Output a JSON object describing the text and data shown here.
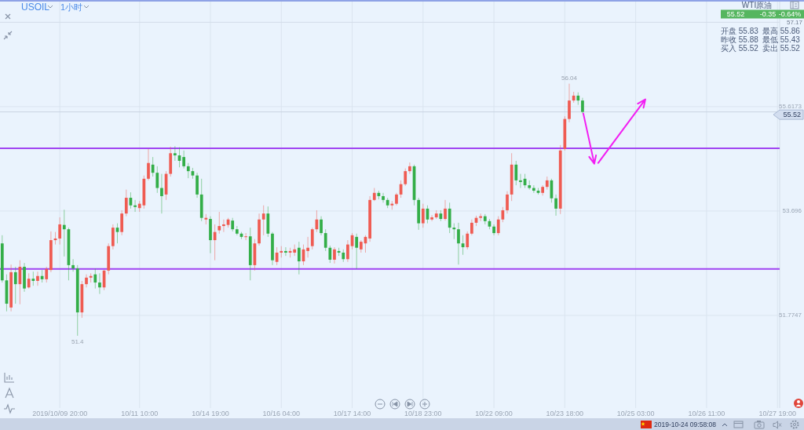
{
  "chart_data": {
    "type": "candlestick",
    "title": "USOIL",
    "subtitle": "1小时",
    "categories": [
      null,
      null,
      null,
      null,
      null,
      null,
      null,
      null,
      null,
      null,
      null,
      null,
      null,
      "2019/10/09 20:00",
      null,
      null,
      null,
      null,
      null,
      null,
      null,
      null,
      null,
      null,
      null,
      null,
      null,
      null,
      null,
      null,
      null,
      "10/11 10:00",
      null,
      null,
      null,
      null,
      null,
      null,
      null,
      null,
      null,
      null,
      null,
      null,
      null,
      null,
      null,
      "10/14 19:00",
      null,
      null,
      null,
      null,
      null,
      null,
      null,
      null,
      null,
      null,
      null,
      null,
      null,
      null,
      null,
      "10/16 04:00",
      null,
      null,
      null,
      null,
      null,
      null,
      null,
      null,
      null,
      null,
      null,
      null,
      null,
      null,
      null,
      "10/17 14:00",
      null,
      null,
      null,
      null,
      null,
      null,
      null,
      null,
      null,
      null,
      null,
      null,
      null,
      null,
      null,
      "10/18 23:00",
      null,
      null,
      null,
      null,
      null,
      null,
      null,
      null,
      null,
      null,
      null,
      null,
      null,
      null,
      null,
      "10/22 09:00",
      null,
      null,
      null,
      null,
      null,
      null,
      null,
      null,
      null,
      null,
      null,
      null,
      null,
      null,
      null,
      "10/23 18:00",
      null,
      null,
      null,
      null,
      null,
      null,
      null,
      null,
      null,
      null,
      null,
      null,
      null,
      null,
      null,
      "10/25 03:00",
      null,
      null,
      null,
      null,
      null,
      null,
      null,
      null,
      null,
      null,
      null,
      null,
      null,
      null,
      null,
      "10/26 11:00",
      null,
      null,
      null,
      null,
      null,
      null,
      null,
      null,
      null,
      null,
      null,
      null,
      null,
      null,
      null,
      "10/27 19:00"
    ],
    "ohlc": [
      [
        53.1,
        53.25,
        52.38,
        52.42
      ],
      [
        52.42,
        52.53,
        51.85,
        51.99
      ],
      [
        51.92,
        52.71,
        51.85,
        52.57
      ],
      [
        52.57,
        52.67,
        51.99,
        52.35
      ],
      [
        52.35,
        52.79,
        51.98,
        52.67
      ],
      [
        52.67,
        52.74,
        52.21,
        52.27
      ],
      [
        52.29,
        52.55,
        52.27,
        52.45
      ],
      [
        52.45,
        52.58,
        52.32,
        52.41
      ],
      [
        52.41,
        52.58,
        52.32,
        52.5
      ],
      [
        52.5,
        52.61,
        52.38,
        52.44
      ],
      [
        52.44,
        52.67,
        52.38,
        52.63
      ],
      [
        52.61,
        53.32,
        52.57,
        53.16
      ],
      [
        53.16,
        53.31,
        53.08,
        53.19
      ],
      [
        53.19,
        53.58,
        53.08,
        53.45
      ],
      [
        53.44,
        53.72,
        52.86,
        53.36
      ],
      [
        53.36,
        53.39,
        52.42,
        52.7
      ],
      [
        52.7,
        52.81,
        52.58,
        52.64
      ],
      [
        52.64,
        52.7,
        51.4,
        51.83
      ],
      [
        51.83,
        52.41,
        51.73,
        52.35
      ],
      [
        52.35,
        52.53,
        52.29,
        52.47
      ],
      [
        52.47,
        52.55,
        52.38,
        52.5
      ],
      [
        52.53,
        52.64,
        52.27,
        52.38
      ],
      [
        52.38,
        52.55,
        52.17,
        52.29
      ],
      [
        52.29,
        52.61,
        52.24,
        52.6
      ],
      [
        52.6,
        53.1,
        52.53,
        53.05
      ],
      [
        53.05,
        53.45,
        52.99,
        53.39
      ],
      [
        53.39,
        53.47,
        53.1,
        53.31
      ],
      [
        53.31,
        53.71,
        53.25,
        53.65
      ],
      [
        53.65,
        54.09,
        53.6,
        53.94
      ],
      [
        53.94,
        54.04,
        53.74,
        53.8
      ],
      [
        53.8,
        53.9,
        53.68,
        53.77
      ],
      [
        53.75,
        53.88,
        53.68,
        53.83
      ],
      [
        53.8,
        54.35,
        53.74,
        54.29
      ],
      [
        54.29,
        54.84,
        54.26,
        54.58
      ],
      [
        54.55,
        54.69,
        54.33,
        54.4
      ],
      [
        54.4,
        54.52,
        54.03,
        54.12
      ],
      [
        54.12,
        54.38,
        53.65,
        53.97
      ],
      [
        54.0,
        54.43,
        53.9,
        54.38
      ],
      [
        54.38,
        54.88,
        54.33,
        54.76
      ],
      [
        54.76,
        54.89,
        54.62,
        54.72
      ],
      [
        54.72,
        54.87,
        54.5,
        54.62
      ],
      [
        54.69,
        54.81,
        54.48,
        54.52
      ],
      [
        54.52,
        54.58,
        54.3,
        54.43
      ],
      [
        54.43,
        54.49,
        54.29,
        54.35
      ],
      [
        54.35,
        54.4,
        53.94,
        54.0
      ],
      [
        54.0,
        54.29,
        53.51,
        53.57
      ],
      [
        53.54,
        53.64,
        53.45,
        53.57
      ],
      [
        53.55,
        53.6,
        52.92,
        53.16
      ],
      [
        53.16,
        53.45,
        52.79,
        53.31
      ],
      [
        53.34,
        53.68,
        53.28,
        53.42
      ],
      [
        53.42,
        53.54,
        53.31,
        53.45
      ],
      [
        53.44,
        53.57,
        53.39,
        53.54
      ],
      [
        53.52,
        53.57,
        53.32,
        53.36
      ],
      [
        53.36,
        53.42,
        53.25,
        53.28
      ],
      [
        53.28,
        53.31,
        53.18,
        53.22
      ],
      [
        53.22,
        53.29,
        53.16,
        53.23
      ],
      [
        53.23,
        53.39,
        52.42,
        52.7
      ],
      [
        52.7,
        53.18,
        52.6,
        53.1
      ],
      [
        53.1,
        53.65,
        53.06,
        53.54
      ],
      [
        53.54,
        53.8,
        53.25,
        53.65
      ],
      [
        53.65,
        53.78,
        53.22,
        53.28
      ],
      [
        53.28,
        53.31,
        52.7,
        52.79
      ],
      [
        52.76,
        53.03,
        52.7,
        52.93
      ],
      [
        52.93,
        53.05,
        52.84,
        52.96
      ],
      [
        52.96,
        53.03,
        52.87,
        52.93
      ],
      [
        52.93,
        53.02,
        52.84,
        52.96
      ],
      [
        52.93,
        53.08,
        52.87,
        52.99
      ],
      [
        53.02,
        53.13,
        52.53,
        52.77
      ],
      [
        52.77,
        53.08,
        52.7,
        52.99
      ],
      [
        52.96,
        53.22,
        52.84,
        53.02
      ],
      [
        53.05,
        53.39,
        52.99,
        53.36
      ],
      [
        53.36,
        53.71,
        53.31,
        53.54
      ],
      [
        53.54,
        53.6,
        53.25,
        53.29
      ],
      [
        53.29,
        53.36,
        52.96,
        53.02
      ],
      [
        53.02,
        53.06,
        52.74,
        52.8
      ],
      [
        52.8,
        53.03,
        52.73,
        52.99
      ],
      [
        52.96,
        53.02,
        52.87,
        52.93
      ],
      [
        52.93,
        52.99,
        52.76,
        52.81
      ],
      [
        52.81,
        53.16,
        52.76,
        53.08
      ],
      [
        53.05,
        53.29,
        52.99,
        53.25
      ],
      [
        53.22,
        53.28,
        52.63,
        53.02
      ],
      [
        52.99,
        53.16,
        52.93,
        53.13
      ],
      [
        53.1,
        53.25,
        52.93,
        53.22
      ],
      [
        53.19,
        53.97,
        53.13,
        53.9
      ],
      [
        53.9,
        54.12,
        53.88,
        54.03
      ],
      [
        54.03,
        54.07,
        53.91,
        53.97
      ],
      [
        53.97,
        54.03,
        53.85,
        53.9
      ],
      [
        53.9,
        53.94,
        53.75,
        53.8
      ],
      [
        53.8,
        53.88,
        53.72,
        53.83
      ],
      [
        53.83,
        54.03,
        53.8,
        54.0
      ],
      [
        54.0,
        54.26,
        53.94,
        54.19
      ],
      [
        54.19,
        54.48,
        54.16,
        54.43
      ],
      [
        54.43,
        54.59,
        54.38,
        54.52
      ],
      [
        54.52,
        54.55,
        53.8,
        53.9
      ],
      [
        53.9,
        53.94,
        53.35,
        53.47
      ],
      [
        53.47,
        53.83,
        53.39,
        53.74
      ],
      [
        53.74,
        53.8,
        53.47,
        53.54
      ],
      [
        53.54,
        53.62,
        53.51,
        53.58
      ],
      [
        53.58,
        53.71,
        53.55,
        53.65
      ],
      [
        53.65,
        53.71,
        53.51,
        53.55
      ],
      [
        53.55,
        53.9,
        53.52,
        53.74
      ],
      [
        53.74,
        53.85,
        53.29,
        53.39
      ],
      [
        53.39,
        53.47,
        53.18,
        53.36
      ],
      [
        53.36,
        53.48,
        52.71,
        53.1
      ],
      [
        53.1,
        53.25,
        52.89,
        53.03
      ],
      [
        53.03,
        53.32,
        52.99,
        53.28
      ],
      [
        53.28,
        53.54,
        53.25,
        53.48
      ],
      [
        53.48,
        53.61,
        53.42,
        53.57
      ],
      [
        53.57,
        53.65,
        53.51,
        53.6
      ],
      [
        53.6,
        53.64,
        53.45,
        53.51
      ],
      [
        53.51,
        53.55,
        53.36,
        53.41
      ],
      [
        53.41,
        53.45,
        53.25,
        53.29
      ],
      [
        53.29,
        53.6,
        53.25,
        53.54
      ],
      [
        53.54,
        53.77,
        53.49,
        53.71
      ],
      [
        53.71,
        54.06,
        53.65,
        54.0
      ],
      [
        54.0,
        54.76,
        53.88,
        54.55
      ],
      [
        54.55,
        54.62,
        54.17,
        54.26
      ],
      [
        54.26,
        54.38,
        54.12,
        54.23
      ],
      [
        54.29,
        54.38,
        54.12,
        54.17
      ],
      [
        54.17,
        54.26,
        54.09,
        54.12
      ],
      [
        54.12,
        54.17,
        54.03,
        54.07
      ],
      [
        54.07,
        54.12,
        54.0,
        54.03
      ],
      [
        54.03,
        54.17,
        53.98,
        54.14
      ],
      [
        54.14,
        54.33,
        54.09,
        54.26
      ],
      [
        54.26,
        54.29,
        53.85,
        53.93
      ],
      [
        53.93,
        54.0,
        53.61,
        53.74
      ],
      [
        53.74,
        54.91,
        53.64,
        54.81
      ],
      [
        54.84,
        55.44,
        54.81,
        55.39
      ],
      [
        55.39,
        56.04,
        55.33,
        55.73
      ],
      [
        55.73,
        55.89,
        55.69,
        55.82
      ],
      [
        55.82,
        55.88,
        55.65,
        55.73
      ],
      [
        55.73,
        55.78,
        55.49,
        55.52
      ],
      null,
      null,
      null,
      null,
      null,
      null,
      null,
      null,
      null,
      null,
      null,
      null,
      null,
      null,
      null,
      null,
      null,
      null,
      null,
      null,
      null,
      null,
      null,
      null,
      null,
      null,
      null,
      null,
      null,
      null,
      null,
      null,
      null,
      null,
      null,
      null,
      null,
      null,
      null,
      null,
      null,
      null,
      null,
      null
    ],
    "ylim": [
      50.07,
      57.58
    ],
    "yticks": [
      51.7747,
      53.696,
      55.6173
    ],
    "grid": true,
    "ref_lines": [
      {
        "axis": "y",
        "value": 54.85,
        "color": "#a044f2"
      },
      {
        "axis": "y",
        "value": 52.63,
        "color": "#a044f2"
      },
      {
        "axis": "y",
        "value": 55.52,
        "label": "55.52",
        "color": "#c9d3e2"
      },
      {
        "axis": "y",
        "value": 57.17,
        "label": "57.17",
        "color": "#d3dce9"
      }
    ],
    "annotations": [
      {
        "text": "51.4",
        "y": 51.4
      },
      {
        "text": "56.04",
        "y": 56.04
      },
      "WTI原油",
      "55.52",
      "-0.35",
      "-0.64%",
      "开盘 55.83",
      "最高 55.86",
      "昨收 55.88",
      "最低 55.43",
      "买入 55.52",
      "卖出 55.52",
      "2019-10-24 09:58:08"
    ]
  }
}
